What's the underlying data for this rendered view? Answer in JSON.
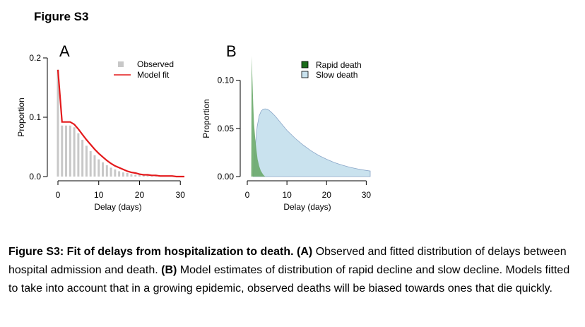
{
  "figure_title": "Figure S3",
  "caption": {
    "lead": "Figure S3: Fit of delays from hospitalization to death.",
    "a_label": "(A)",
    "a_text": " Observed and fitted distribution of delays between hospital admission and death. ",
    "b_label": "(B)",
    "b_text": " Model estimates of distribution of rapid decline and slow decline. Models fitted to take into account that in a growing epidemic, observed deaths will be biased towards ones that die quickly."
  },
  "colors": {
    "observed": "#c8c8c8",
    "model_fit": "#e41a1c",
    "rapid_death": "#1a6b1a",
    "rapid_death_fill": "#6aaa6a",
    "slow_death": "#c9e2ee",
    "slow_death_line": "#8aa6c8"
  },
  "chart_data": [
    {
      "panel": "A",
      "type": "bar",
      "ylabel": "Proportion",
      "xlabel": "Delay (days)",
      "xlim": [
        0,
        31
      ],
      "ylim": [
        0,
        0.2
      ],
      "xticks": [
        0,
        10,
        20,
        30
      ],
      "yticks": [
        "0.0",
        "0.1",
        "0.2"
      ],
      "legend": {
        "position": "top-right",
        "entries": [
          "Observed",
          "Model fit"
        ]
      },
      "x": [
        0,
        1,
        2,
        3,
        4,
        5,
        6,
        7,
        8,
        9,
        10,
        11,
        12,
        13,
        14,
        15,
        16,
        17,
        18,
        19,
        20,
        21,
        22,
        23,
        24,
        25,
        26,
        27,
        28,
        29,
        30,
        31
      ],
      "series": [
        {
          "name": "Observed",
          "kind": "bar",
          "values": [
            0.18,
            0.086,
            0.086,
            0.086,
            0.083,
            0.073,
            0.062,
            0.052,
            0.043,
            0.036,
            0.029,
            0.024,
            0.019,
            0.015,
            0.012,
            0.009,
            0.007,
            0.006,
            0.004,
            0.003,
            0.003,
            0.002,
            0.002,
            0.001,
            0.001,
            0.001,
            0.001,
            0.0,
            0.0,
            0.0,
            0.0,
            0.0
          ]
        },
        {
          "name": "Model fit",
          "kind": "line",
          "values": [
            0.18,
            0.092,
            0.092,
            0.092,
            0.088,
            0.08,
            0.071,
            0.062,
            0.054,
            0.046,
            0.039,
            0.033,
            0.027,
            0.022,
            0.018,
            0.015,
            0.012,
            0.009,
            0.007,
            0.006,
            0.004,
            0.003,
            0.003,
            0.002,
            0.002,
            0.001,
            0.001,
            0.001,
            0.001,
            0.0,
            0.0,
            0.0
          ]
        }
      ]
    },
    {
      "panel": "B",
      "type": "area",
      "ylabel": "Proportion",
      "xlabel": "Delay (days)",
      "xlim": [
        0,
        31
      ],
      "ylim": [
        0,
        0.11
      ],
      "xticks": [
        0,
        10,
        20,
        30
      ],
      "yticks": [
        "0.00",
        "0.05",
        "0.10"
      ],
      "legend": {
        "position": "top-right",
        "entries": [
          "Rapid death",
          "Slow death"
        ]
      },
      "series": [
        {
          "name": "Rapid death",
          "x": [
            1.0,
            1.1,
            1.3,
            1.5,
            1.7,
            2.0,
            2.3,
            2.6,
            3.0,
            3.4,
            4.0,
            4.5
          ],
          "values": [
            0.0,
            0.125,
            0.1,
            0.075,
            0.055,
            0.04,
            0.028,
            0.018,
            0.011,
            0.006,
            0.002,
            0.0
          ]
        },
        {
          "name": "Slow death",
          "x": [
            1.5,
            2.0,
            2.5,
            3.0,
            3.5,
            4.0,
            4.5,
            5.0,
            5.5,
            6.0,
            7.0,
            8.0,
            9.0,
            10.0,
            12.0,
            14.0,
            16.0,
            18.0,
            20.0,
            22.0,
            24.0,
            26.0,
            28.0,
            30.0,
            31.0
          ],
          "values": [
            0.0,
            0.03,
            0.052,
            0.063,
            0.068,
            0.07,
            0.0703,
            0.07,
            0.0688,
            0.067,
            0.063,
            0.058,
            0.053,
            0.048,
            0.04,
            0.033,
            0.027,
            0.022,
            0.018,
            0.0145,
            0.0118,
            0.0095,
            0.0078,
            0.0064,
            0.0058
          ]
        }
      ]
    }
  ],
  "panel_labels": [
    "A",
    "B"
  ]
}
